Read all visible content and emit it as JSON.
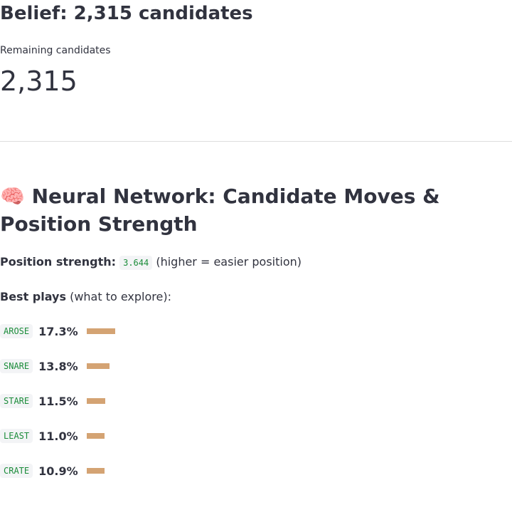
{
  "header": {
    "title": "Belief: 2,315 candidates"
  },
  "metric": {
    "label": "Remaining candidates",
    "value": "2,315"
  },
  "section": {
    "title": "🧠 Neural Network: Candidate Moves & Position Strength"
  },
  "strength": {
    "label": "Position strength:",
    "value": "3.644",
    "note": "(higher = easier position)"
  },
  "best_plays": {
    "label": "Best plays",
    "note": "(what to explore):"
  },
  "plays": [
    {
      "word": "AROSE",
      "value": 17.3,
      "label": "17.3%"
    },
    {
      "word": "SNARE",
      "value": 13.8,
      "label": "13.8%"
    },
    {
      "word": "STARE",
      "value": 11.5,
      "label": "11.5%"
    },
    {
      "word": "LEAST",
      "value": 11.0,
      "label": "11.0%"
    },
    {
      "word": "CRATE",
      "value": 10.9,
      "label": "10.9%"
    }
  ]
}
